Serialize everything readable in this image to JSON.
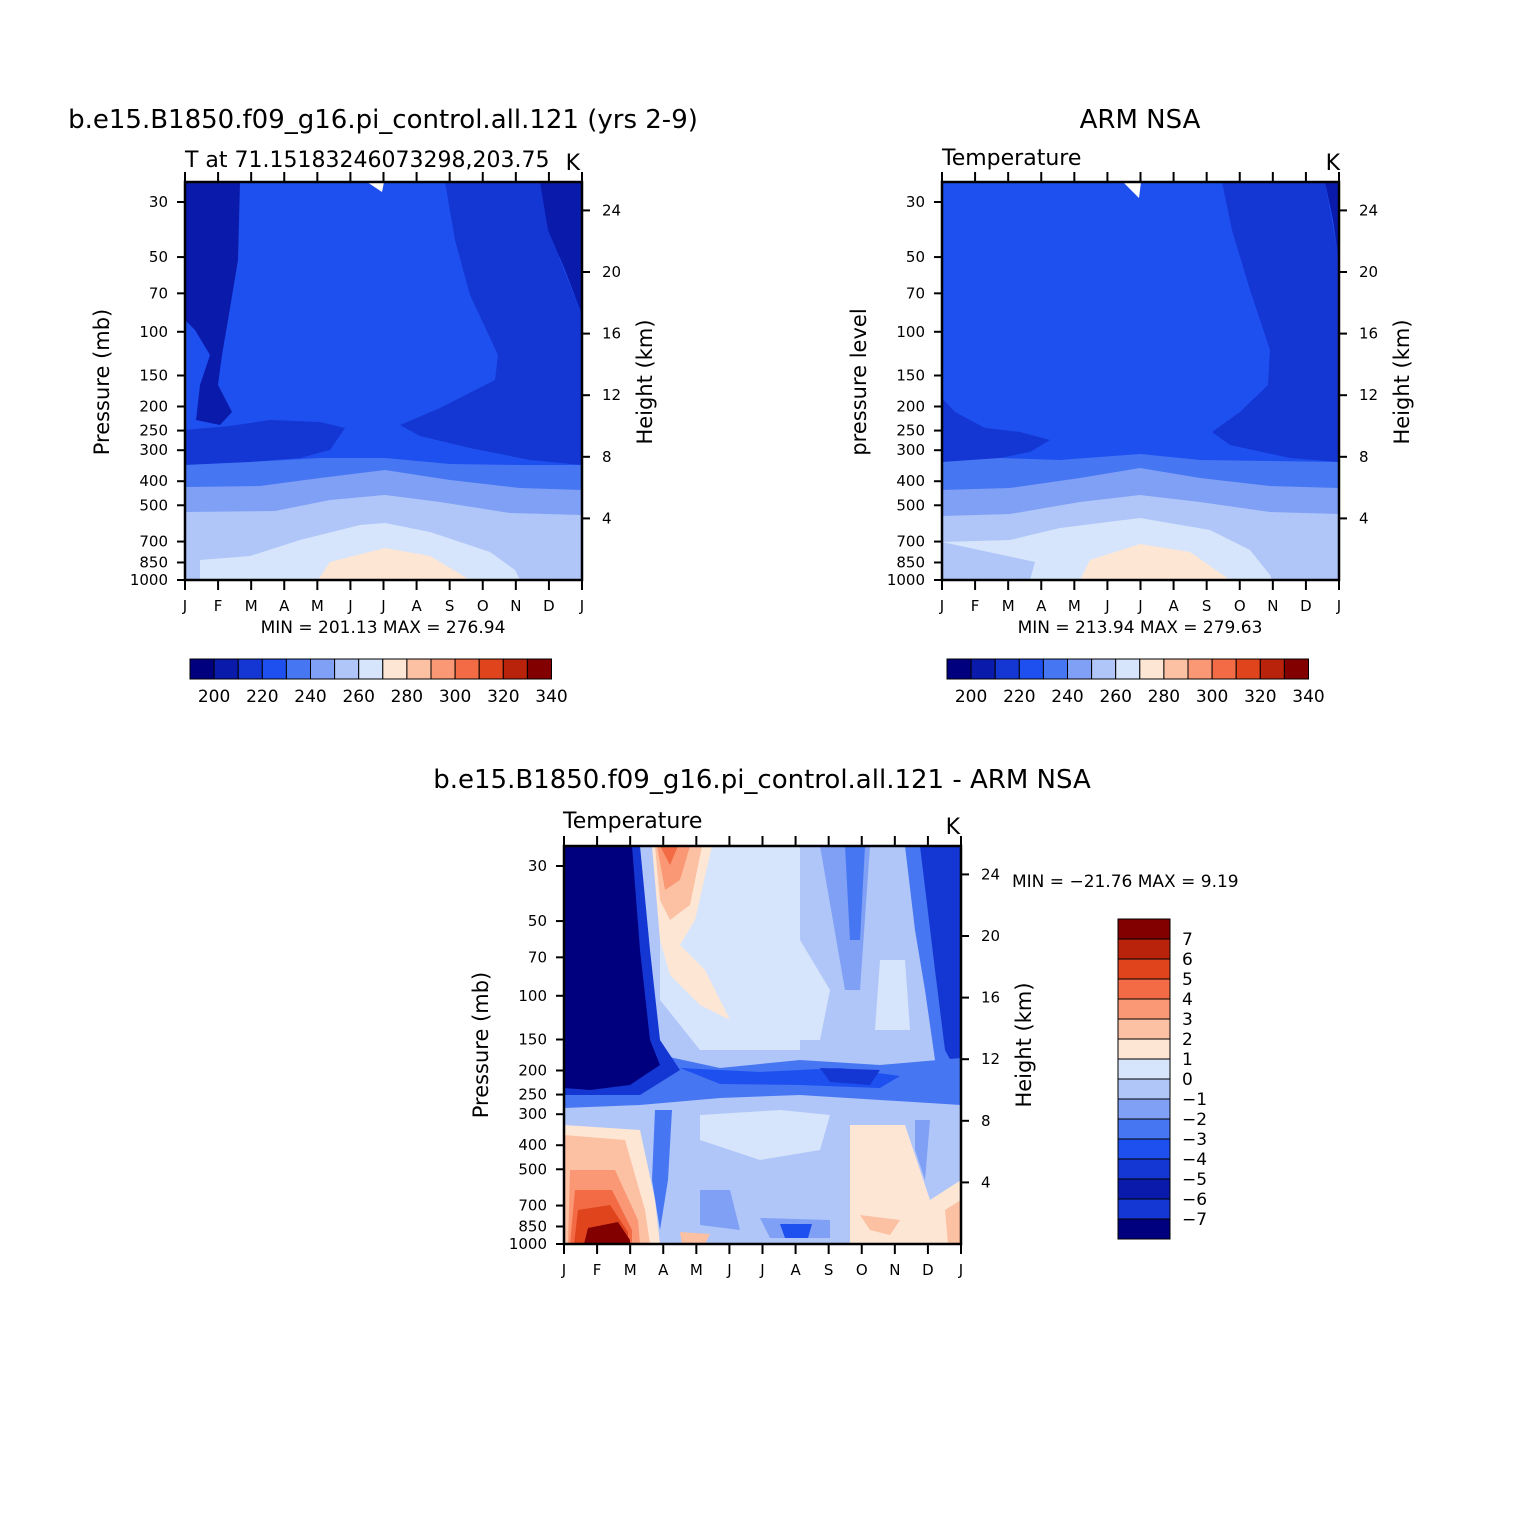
{
  "palette": [
    "#00007f",
    "#0a1aab",
    "#1436d2",
    "#1e50f0",
    "#4676f2",
    "#7fa0f5",
    "#b0c6f8",
    "#d6e5fb",
    "#fde6d4",
    "#fcc0a3",
    "#fa9876",
    "#f26b44",
    "#e0441d",
    "#b9220b",
    "#820000"
  ],
  "chart_data": [
    {
      "type": "contour",
      "title": "b.e15.B1850.f09_g16.pi_control.all.121 (yrs 2-9)",
      "subtitle_left": "T at 71.15183246073298,203.75",
      "subtitle_right": "K",
      "x_tick_labels": [
        "J",
        "F",
        "M",
        "A",
        "M",
        "J",
        "J",
        "A",
        "S",
        "O",
        "N",
        "D",
        "J"
      ],
      "ylabel": "Pressure (mb)",
      "y_ticks": [
        "30",
        "50",
        "70",
        "100",
        "150",
        "200",
        "250",
        "300",
        "400",
        "500",
        "700",
        "850",
        "1000"
      ],
      "y2label": "Height (km)",
      "y2_ticks": [
        "24",
        "20",
        "16",
        "12",
        "8",
        "4"
      ],
      "stats": "MIN = 201.13 MAX = 276.94",
      "colorbar_labels": [
        "200",
        "220",
        "240",
        "260",
        "280",
        "300",
        "320",
        "340"
      ],
      "min": 201.13,
      "max": 276.94
    },
    {
      "type": "contour",
      "title": "ARM NSA",
      "subtitle_left": "Temperature",
      "subtitle_right": "K",
      "x_tick_labels": [
        "J",
        "F",
        "M",
        "A",
        "M",
        "J",
        "J",
        "A",
        "S",
        "O",
        "N",
        "D",
        "J"
      ],
      "ylabel": "pressure level",
      "y_ticks": [
        "30",
        "50",
        "70",
        "100",
        "150",
        "200",
        "250",
        "300",
        "400",
        "500",
        "700",
        "850",
        "1000"
      ],
      "y2label": "Height (km)",
      "y2_ticks": [
        "24",
        "20",
        "16",
        "12",
        "8",
        "4"
      ],
      "stats": "MIN = 213.94 MAX = 279.63",
      "colorbar_labels": [
        "200",
        "220",
        "240",
        "260",
        "280",
        "300",
        "320",
        "340"
      ],
      "min": 213.94,
      "max": 279.63
    },
    {
      "type": "contour",
      "title": "b.e15.B1850.f09_g16.pi_control.all.121 - ARM NSA",
      "subtitle_left": "Temperature",
      "subtitle_right": "K",
      "x_tick_labels": [
        "J",
        "F",
        "M",
        "A",
        "M",
        "J",
        "J",
        "A",
        "S",
        "O",
        "N",
        "D",
        "J"
      ],
      "ylabel": "Pressure (mb)",
      "y_ticks": [
        "30",
        "50",
        "70",
        "100",
        "150",
        "200",
        "250",
        "300",
        "400",
        "500",
        "700",
        "850",
        "1000"
      ],
      "y2label": "Height (km)",
      "y2_ticks": [
        "24",
        "20",
        "16",
        "12",
        "8",
        "4"
      ],
      "stats": "MIN = −21.76 MAX =    9.19",
      "colorbar_labels": [
        "7",
        "6",
        "5",
        "4",
        "3",
        "2",
        "1",
        "0",
        "−1",
        "−2",
        "−3",
        "−4",
        "−5",
        "−6",
        "−7"
      ],
      "min": -21.76,
      "max": 9.19
    }
  ]
}
